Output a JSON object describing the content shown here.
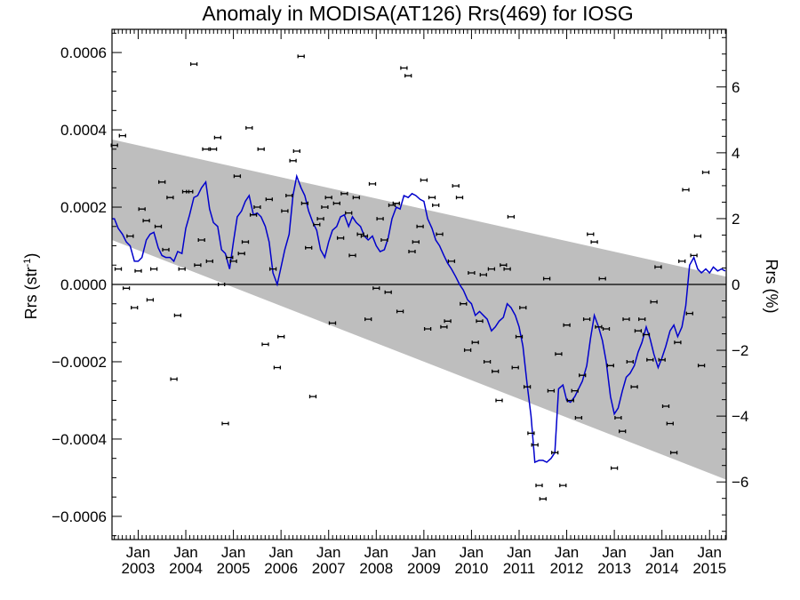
{
  "chart_data": {
    "type": "scatter",
    "title": "Anomaly in MODISA(AT126) Rrs(469) for IOSG",
    "ylabel_left": "Rrs (str",
    "ylabel_left_sup": "-1",
    "ylabel_left_close": ")",
    "ylabel_right": "Rrs (%)",
    "x_range": [
      2002.45,
      2015.35
    ],
    "ylim": [
      -0.00066,
      0.00066
    ],
    "ylim_right": [
      -7.75,
      7.75
    ],
    "left_ticks": [
      {
        "value": 0.0006,
        "label": "0.0006"
      },
      {
        "value": 0.0004,
        "label": "0.0004"
      },
      {
        "value": 0.0002,
        "label": "0.0002"
      },
      {
        "value": 0.0,
        "label": "0.0000"
      },
      {
        "value": -0.0002,
        "label": "−0.0002"
      },
      {
        "value": -0.0004,
        "label": "−0.0004"
      },
      {
        "value": -0.0006,
        "label": "−0.0006"
      }
    ],
    "right_ticks": [
      {
        "value": 6,
        "label": "6"
      },
      {
        "value": 4,
        "label": "4"
      },
      {
        "value": 2,
        "label": "2"
      },
      {
        "value": 0,
        "label": "0"
      },
      {
        "value": -2,
        "label": "−2"
      },
      {
        "value": -4,
        "label": "−4"
      },
      {
        "value": -6,
        "label": "−6"
      }
    ],
    "x_ticks": [
      {
        "value": 2003.0,
        "month": "Jan",
        "year": "2003"
      },
      {
        "value": 2004.0,
        "month": "Jan",
        "year": "2004"
      },
      {
        "value": 2005.0,
        "month": "Jan",
        "year": "2005"
      },
      {
        "value": 2006.0,
        "month": "Jan",
        "year": "2006"
      },
      {
        "value": 2007.0,
        "month": "Jan",
        "year": "2007"
      },
      {
        "value": 2008.0,
        "month": "Jan",
        "year": "2008"
      },
      {
        "value": 2009.0,
        "month": "Jan",
        "year": "2009"
      },
      {
        "value": 2010.0,
        "month": "Jan",
        "year": "2010"
      },
      {
        "value": 2011.0,
        "month": "Jan",
        "year": "2011"
      },
      {
        "value": 2012.0,
        "month": "Jan",
        "year": "2012"
      },
      {
        "value": 2013.0,
        "month": "Jan",
        "year": "2013"
      },
      {
        "value": 2014.0,
        "month": "Jan",
        "year": "2014"
      },
      {
        "value": 2015.0,
        "month": "Jan",
        "year": "2015"
      }
    ],
    "trend_band": {
      "x": [
        2002.45,
        2015.35
      ],
      "upper": [
        0.000375,
        2e-05
      ],
      "lower": [
        0.000115,
        -0.000505
      ]
    },
    "zero_line": 0.0,
    "points": [
      [
        2002.5,
        0.00036
      ],
      [
        2002.58,
        4e-05
      ],
      [
        2002.67,
        0.000385
      ],
      [
        2002.75,
        -1e-05
      ],
      [
        2002.83,
        0.000125
      ],
      [
        2002.92,
        -6e-05
      ],
      [
        2003.0,
        3.5e-05
      ],
      [
        2003.08,
        0.000195
      ],
      [
        2003.17,
        0.000165
      ],
      [
        2003.25,
        -4e-05
      ],
      [
        2003.33,
        4e-05
      ],
      [
        2003.42,
        0.00015
      ],
      [
        2003.5,
        0.000265
      ],
      [
        2003.58,
        9e-05
      ],
      [
        2003.67,
        0.000225
      ],
      [
        2003.75,
        -0.000245
      ],
      [
        2003.83,
        -8e-05
      ],
      [
        2003.92,
        4e-05
      ],
      [
        2004.0,
        0.00024
      ],
      [
        2004.08,
        0.00024
      ],
      [
        2004.17,
        0.00057
      ],
      [
        2004.25,
        5e-05
      ],
      [
        2004.33,
        0.000115
      ],
      [
        2004.42,
        0.00035
      ],
      [
        2004.5,
        6e-05
      ],
      [
        2004.58,
        0.00035
      ],
      [
        2004.67,
        0.00038
      ],
      [
        2004.75,
        0.0
      ],
      [
        2004.83,
        -0.00036
      ],
      [
        2004.92,
        7e-05
      ],
      [
        2005.0,
        6e-05
      ],
      [
        2005.08,
        0.00028
      ],
      [
        2005.17,
        8e-05
      ],
      [
        2005.25,
        0.00011
      ],
      [
        2005.33,
        0.000405
      ],
      [
        2005.42,
        0.00018
      ],
      [
        2005.5,
        0.0002
      ],
      [
        2005.58,
        0.00035
      ],
      [
        2005.67,
        -0.000155
      ],
      [
        2005.75,
        0.00022
      ],
      [
        2005.83,
        4e-05
      ],
      [
        2005.92,
        -0.000215
      ],
      [
        2006.0,
        -0.000135
      ],
      [
        2006.08,
        0.00019
      ],
      [
        2006.17,
        0.00023
      ],
      [
        2006.25,
        0.00032
      ],
      [
        2006.33,
        0.000345
      ],
      [
        2006.42,
        0.00059
      ],
      [
        2006.5,
        0.00021
      ],
      [
        2006.58,
        9.5e-05
      ],
      [
        2006.67,
        -0.00029
      ],
      [
        2006.75,
        0.000155
      ],
      [
        2006.83,
        0.00017
      ],
      [
        2006.92,
        0.0002
      ],
      [
        2007.0,
        0.000225
      ],
      [
        2007.08,
        -0.0001
      ],
      [
        2007.17,
        0.00021
      ],
      [
        2007.25,
        0.00012
      ],
      [
        2007.33,
        0.000235
      ],
      [
        2007.42,
        0.000185
      ],
      [
        2007.5,
        7.5e-05
      ],
      [
        2007.58,
        0.000225
      ],
      [
        2007.67,
        0.00013
      ],
      [
        2007.75,
        0.000125
      ],
      [
        2007.83,
        -9e-05
      ],
      [
        2007.92,
        0.00026
      ],
      [
        2008.0,
        -1e-05
      ],
      [
        2008.08,
        0.00017
      ],
      [
        2008.17,
        0.000115
      ],
      [
        2008.25,
        -2e-05
      ],
      [
        2008.33,
        0.000205
      ],
      [
        2008.42,
        0.00021
      ],
      [
        2008.5,
        -7e-05
      ],
      [
        2008.58,
        0.00056
      ],
      [
        2008.67,
        0.00054
      ],
      [
        2008.75,
        8.5e-05
      ],
      [
        2008.83,
        0.00011
      ],
      [
        2008.92,
        0.00015
      ],
      [
        2009.0,
        0.00027
      ],
      [
        2009.08,
        -0.000115
      ],
      [
        2009.17,
        0.000225
      ],
      [
        2009.25,
        0.000205
      ],
      [
        2009.33,
        0.00013
      ],
      [
        2009.42,
        -0.00011
      ],
      [
        2009.5,
        -9.5e-05
      ],
      [
        2009.58,
        6e-05
      ],
      [
        2009.67,
        0.000255
      ],
      [
        2009.75,
        0.000225
      ],
      [
        2009.83,
        -5e-05
      ],
      [
        2009.92,
        -0.00017
      ],
      [
        2010.0,
        3e-05
      ],
      [
        2010.08,
        -0.00015
      ],
      [
        2010.17,
        -9.5e-05
      ],
      [
        2010.25,
        2.5e-05
      ],
      [
        2010.33,
        -0.0002
      ],
      [
        2010.42,
        4e-05
      ],
      [
        2010.5,
        -0.000225
      ],
      [
        2010.58,
        -0.0003
      ],
      [
        2010.67,
        5e-05
      ],
      [
        2010.75,
        4e-05
      ],
      [
        2010.83,
        0.000175
      ],
      [
        2010.92,
        -0.000215
      ],
      [
        2011.0,
        -0.000135
      ],
      [
        2011.08,
        -6e-05
      ],
      [
        2011.17,
        -0.000265
      ],
      [
        2011.25,
        -0.000385
      ],
      [
        2011.33,
        -0.000415
      ],
      [
        2011.42,
        -0.00052
      ],
      [
        2011.5,
        -0.000555
      ],
      [
        2011.58,
        1.5e-05
      ],
      [
        2011.67,
        -0.000275
      ],
      [
        2011.75,
        -0.000435
      ],
      [
        2011.83,
        -0.00018
      ],
      [
        2011.92,
        -0.00052
      ],
      [
        2012.0,
        -0.000105
      ],
      [
        2012.08,
        -0.0003
      ],
      [
        2012.17,
        -0.000275
      ],
      [
        2012.25,
        -0.000345
      ],
      [
        2012.33,
        -0.000235
      ],
      [
        2012.42,
        -9e-05
      ],
      [
        2012.5,
        0.00013
      ],
      [
        2012.58,
        0.00011
      ],
      [
        2012.67,
        -0.00011
      ],
      [
        2012.75,
        1.5e-05
      ],
      [
        2012.83,
        -0.000115
      ],
      [
        2012.92,
        -0.00021
      ],
      [
        2013.0,
        -0.000475
      ],
      [
        2013.08,
        -0.000345
      ],
      [
        2013.17,
        -0.00038
      ],
      [
        2013.25,
        -9e-05
      ],
      [
        2013.33,
        -0.0002
      ],
      [
        2013.42,
        -0.000265
      ],
      [
        2013.5,
        -0.00012
      ],
      [
        2013.58,
        -9e-05
      ],
      [
        2013.67,
        -0.00013
      ],
      [
        2013.75,
        -0.000195
      ],
      [
        2013.83,
        -4.5e-05
      ],
      [
        2013.92,
        4.5e-05
      ],
      [
        2014.0,
        -0.000195
      ],
      [
        2014.08,
        -0.000315
      ],
      [
        2014.17,
        -0.00036
      ],
      [
        2014.25,
        -0.000435
      ],
      [
        2014.33,
        -0.00015
      ],
      [
        2014.42,
        6e-05
      ],
      [
        2014.5,
        0.000245
      ],
      [
        2014.58,
        -7.5e-05
      ],
      [
        2014.67,
        7.5e-05
      ],
      [
        2014.75,
        0.000125
      ],
      [
        2014.83,
        -0.00021
      ],
      [
        2014.92,
        0.00029
      ]
    ],
    "smooth_line": [
      [
        2002.45,
        0.00017
      ],
      [
        2002.5,
        0.00017
      ],
      [
        2002.58,
        0.000145
      ],
      [
        2002.67,
        0.00013
      ],
      [
        2002.75,
        0.00011
      ],
      [
        2002.83,
        0.0001
      ],
      [
        2002.92,
        6e-05
      ],
      [
        2003.0,
        6e-05
      ],
      [
        2003.08,
        7e-05
      ],
      [
        2003.17,
        0.000115
      ],
      [
        2003.25,
        0.00013
      ],
      [
        2003.33,
        0.000135
      ],
      [
        2003.42,
        9.5e-05
      ],
      [
        2003.5,
        7.5e-05
      ],
      [
        2003.58,
        7e-05
      ],
      [
        2003.67,
        7e-05
      ],
      [
        2003.75,
        6e-05
      ],
      [
        2003.83,
        8.5e-05
      ],
      [
        2003.92,
        8e-05
      ],
      [
        2004.0,
        0.000145
      ],
      [
        2004.08,
        0.00018
      ],
      [
        2004.17,
        0.000225
      ],
      [
        2004.25,
        0.00023
      ],
      [
        2004.33,
        0.00025
      ],
      [
        2004.42,
        0.000265
      ],
      [
        2004.5,
        0.000195
      ],
      [
        2004.58,
        0.00016
      ],
      [
        2004.67,
        0.00015
      ],
      [
        2004.75,
        9e-05
      ],
      [
        2004.83,
        8e-05
      ],
      [
        2004.92,
        4e-05
      ],
      [
        2005.0,
        0.00011
      ],
      [
        2005.08,
        0.000175
      ],
      [
        2005.17,
        0.00019
      ],
      [
        2005.25,
        0.000215
      ],
      [
        2005.33,
        0.00023
      ],
      [
        2005.42,
        0.00018
      ],
      [
        2005.5,
        0.000185
      ],
      [
        2005.58,
        0.000175
      ],
      [
        2005.67,
        0.00015
      ],
      [
        2005.75,
        0.00011
      ],
      [
        2005.83,
        3e-05
      ],
      [
        2005.92,
        0.0
      ],
      [
        2006.0,
        4.5e-05
      ],
      [
        2006.08,
        9e-05
      ],
      [
        2006.17,
        0.00013
      ],
      [
        2006.25,
        0.00023
      ],
      [
        2006.33,
        0.00028
      ],
      [
        2006.42,
        0.00025
      ],
      [
        2006.5,
        0.00023
      ],
      [
        2006.58,
        0.00019
      ],
      [
        2006.67,
        0.00016
      ],
      [
        2006.75,
        0.00014
      ],
      [
        2006.83,
        9e-05
      ],
      [
        2006.92,
        7e-05
      ],
      [
        2007.0,
        0.00011
      ],
      [
        2007.08,
        0.00014
      ],
      [
        2007.17,
        0.00015
      ],
      [
        2007.25,
        0.000175
      ],
      [
        2007.33,
        0.00018
      ],
      [
        2007.42,
        0.00015
      ],
      [
        2007.5,
        0.000175
      ],
      [
        2007.58,
        0.00016
      ],
      [
        2007.67,
        0.00015
      ],
      [
        2007.75,
        0.000125
      ],
      [
        2007.83,
        0.000115
      ],
      [
        2007.92,
        0.000125
      ],
      [
        2008.0,
        0.0001
      ],
      [
        2008.08,
        8.5e-05
      ],
      [
        2008.17,
        9e-05
      ],
      [
        2008.25,
        0.00012
      ],
      [
        2008.33,
        0.00017
      ],
      [
        2008.42,
        0.0002
      ],
      [
        2008.5,
        0.000195
      ],
      [
        2008.58,
        0.00023
      ],
      [
        2008.67,
        0.000225
      ],
      [
        2008.75,
        0.000235
      ],
      [
        2008.83,
        0.00023
      ],
      [
        2008.92,
        0.00022
      ],
      [
        2009.0,
        0.000215
      ],
      [
        2009.08,
        0.00017
      ],
      [
        2009.17,
        0.000145
      ],
      [
        2009.25,
        0.000115
      ],
      [
        2009.33,
        0.0001
      ],
      [
        2009.42,
        7.5e-05
      ],
      [
        2009.5,
        5.5e-05
      ],
      [
        2009.58,
        4e-05
      ],
      [
        2009.67,
        2e-05
      ],
      [
        2009.75,
        0.0
      ],
      [
        2009.83,
        -1.5e-05
      ],
      [
        2009.92,
        -4e-05
      ],
      [
        2010.0,
        -5e-05
      ],
      [
        2010.08,
        -8e-05
      ],
      [
        2010.17,
        -7e-05
      ],
      [
        2010.25,
        -8e-05
      ],
      [
        2010.33,
        -9e-05
      ],
      [
        2010.42,
        -0.00012
      ],
      [
        2010.5,
        -0.00011
      ],
      [
        2010.58,
        -9.5e-05
      ],
      [
        2010.67,
        -8.5e-05
      ],
      [
        2010.75,
        -5e-05
      ],
      [
        2010.83,
        -6e-05
      ],
      [
        2010.92,
        -8e-05
      ],
      [
        2011.0,
        -0.00011
      ],
      [
        2011.08,
        -0.00016
      ],
      [
        2011.17,
        -0.00026
      ],
      [
        2011.25,
        -0.00034
      ],
      [
        2011.33,
        -0.00046
      ],
      [
        2011.42,
        -0.000455
      ],
      [
        2011.5,
        -0.000455
      ],
      [
        2011.58,
        -0.00046
      ],
      [
        2011.67,
        -0.00045
      ],
      [
        2011.75,
        -0.000435
      ],
      [
        2011.83,
        -0.00027
      ],
      [
        2011.92,
        -0.00026
      ],
      [
        2012.0,
        -0.0003
      ],
      [
        2012.08,
        -0.000305
      ],
      [
        2012.17,
        -0.00029
      ],
      [
        2012.25,
        -0.00027
      ],
      [
        2012.33,
        -0.00025
      ],
      [
        2012.42,
        -0.00021
      ],
      [
        2012.5,
        -0.00014
      ],
      [
        2012.58,
        -8e-05
      ],
      [
        2012.67,
        -0.00011
      ],
      [
        2012.75,
        -0.000145
      ],
      [
        2012.83,
        -0.0002
      ],
      [
        2012.92,
        -0.00029
      ],
      [
        2013.0,
        -0.000335
      ],
      [
        2013.08,
        -0.00032
      ],
      [
        2013.17,
        -0.000275
      ],
      [
        2013.25,
        -0.00024
      ],
      [
        2013.33,
        -0.00023
      ],
      [
        2013.42,
        -0.00021
      ],
      [
        2013.5,
        -0.000175
      ],
      [
        2013.58,
        -0.00015
      ],
      [
        2013.67,
        -0.00011
      ],
      [
        2013.75,
        -0.00014
      ],
      [
        2013.83,
        -0.00018
      ],
      [
        2013.92,
        -0.000215
      ],
      [
        2014.0,
        -0.00019
      ],
      [
        2014.08,
        -0.00016
      ],
      [
        2014.17,
        -0.00012
      ],
      [
        2014.25,
        -0.000105
      ],
      [
        2014.33,
        -0.000135
      ],
      [
        2014.42,
        -0.00011
      ],
      [
        2014.5,
        -5.5e-05
      ],
      [
        2014.58,
        5e-05
      ],
      [
        2014.67,
        7e-05
      ],
      [
        2014.75,
        4e-05
      ],
      [
        2014.83,
        3e-05
      ],
      [
        2014.92,
        4e-05
      ],
      [
        2015.0,
        3e-05
      ],
      [
        2015.08,
        4.5e-05
      ],
      [
        2015.17,
        3.5e-05
      ],
      [
        2015.25,
        4e-05
      ],
      [
        2015.33,
        3.5e-05
      ]
    ],
    "colors": {
      "band": "#bebebe",
      "line": "#0000cc",
      "points": "#000000",
      "zero_line": "#000000"
    },
    "grid": false
  }
}
